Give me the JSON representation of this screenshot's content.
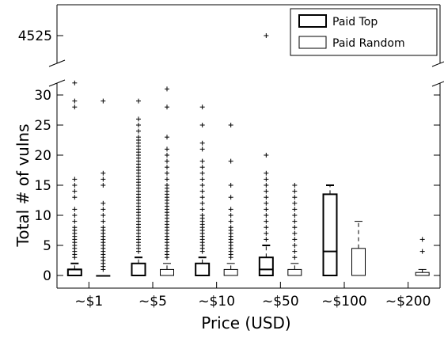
{
  "chart_data": {
    "type": "box",
    "xlabel": "Price (USD)",
    "ylabel": "Total # of vulns",
    "categories": [
      "~$1",
      "~$5",
      "~$10",
      "~$50",
      "~$100",
      "~$200"
    ],
    "yticks": [
      0,
      5,
      10,
      15,
      20,
      25,
      30
    ],
    "ylim": [
      -1,
      32
    ],
    "broken_axis": {
      "upper_tick": 4525
    },
    "legend": {
      "placement": "top-right"
    },
    "series": [
      {
        "name": "Paid Top",
        "stroke_width": 2,
        "boxes": [
          {
            "q1": 0,
            "median": 1,
            "q3": 1,
            "whisker_low": 0,
            "whisker_high": 2,
            "fliers": [
              3,
              3.5,
              4,
              4.5,
              5,
              5.5,
              6,
              6.5,
              7,
              7.5,
              8,
              9,
              10,
              11,
              13,
              14,
              15,
              16,
              28,
              29,
              32
            ]
          },
          {
            "q1": 0,
            "median": 0,
            "q3": 2,
            "whisker_low": 0,
            "whisker_high": 3,
            "fliers": [
              4,
              4.5,
              5,
              5.5,
              6,
              6.5,
              7,
              7.5,
              8,
              8.5,
              9,
              9.5,
              10,
              10.5,
              11,
              11.5,
              12,
              12.5,
              13,
              13.5,
              14,
              14.5,
              15,
              15.5,
              16,
              16.5,
              17,
              17.5,
              18,
              18.5,
              19,
              19.5,
              20,
              20.5,
              21,
              21.5,
              22,
              22.5,
              23,
              24,
              25,
              26,
              29
            ]
          },
          {
            "q1": 0,
            "median": 0,
            "q3": 2,
            "whisker_low": 0,
            "whisker_high": 3,
            "fliers": [
              4,
              4.5,
              5,
              5.5,
              6,
              6.5,
              7,
              7.5,
              8,
              8.5,
              9,
              9.5,
              10,
              11,
              12,
              13,
              14,
              15,
              16,
              17,
              18,
              19,
              21,
              22,
              25,
              28
            ]
          },
          {
            "q1": 0,
            "median": 1,
            "q3": 3,
            "whisker_low": 0,
            "whisker_high": 5,
            "fliers": [
              6,
              7,
              8,
              9,
              10,
              11,
              12,
              13,
              14,
              15,
              16,
              17,
              20,
              4525
            ]
          },
          {
            "q1": 0,
            "median": 4,
            "q3": 13.5,
            "whisker_low": 0,
            "whisker_high": 15,
            "fliers": []
          },
          null
        ]
      },
      {
        "name": "Paid Random",
        "stroke_width": 1,
        "boxes": [
          {
            "q1": 0,
            "median": 0,
            "q3": 0,
            "whisker_low": 0,
            "whisker_high": 0,
            "fliers": [
              1,
              1.5,
              2,
              2.5,
              3,
              3.5,
              4,
              4.5,
              5,
              5.5,
              6,
              6.5,
              7,
              7.5,
              8,
              9,
              10,
              11,
              12,
              15,
              16,
              17,
              29
            ]
          },
          {
            "q1": 0,
            "median": 0,
            "q3": 1,
            "whisker_low": 0,
            "whisker_high": 2,
            "fliers": [
              3,
              3.5,
              4,
              4.5,
              5,
              5.5,
              6,
              6.5,
              7,
              7.5,
              8,
              8.5,
              9,
              9.5,
              10,
              10.5,
              11,
              11.5,
              12,
              12.5,
              13,
              13.5,
              14,
              14.5,
              15,
              16,
              17,
              18,
              19,
              20,
              21,
              23,
              28,
              31
            ]
          },
          {
            "q1": 0,
            "median": 0,
            "q3": 1,
            "whisker_low": 0,
            "whisker_high": 2,
            "fliers": [
              3,
              3.5,
              4,
              4.5,
              5,
              5.5,
              6,
              6.5,
              7,
              7.5,
              8,
              9,
              10,
              11,
              13,
              15,
              19,
              25
            ]
          },
          {
            "q1": 0,
            "median": 0,
            "q3": 1,
            "whisker_low": 0,
            "whisker_high": 2,
            "fliers": [
              3,
              4,
              5,
              6,
              7,
              8,
              9,
              10,
              11,
              12,
              13,
              14,
              15
            ]
          },
          {
            "q1": 0,
            "median": 0,
            "q3": 4.5,
            "whisker_low": 0,
            "whisker_high": 9,
            "fliers": []
          },
          {
            "q1": 0,
            "median": 0,
            "q3": 0.5,
            "whisker_low": 0,
            "whisker_high": 1,
            "fliers": [
              4,
              6
            ]
          }
        ]
      }
    ]
  }
}
